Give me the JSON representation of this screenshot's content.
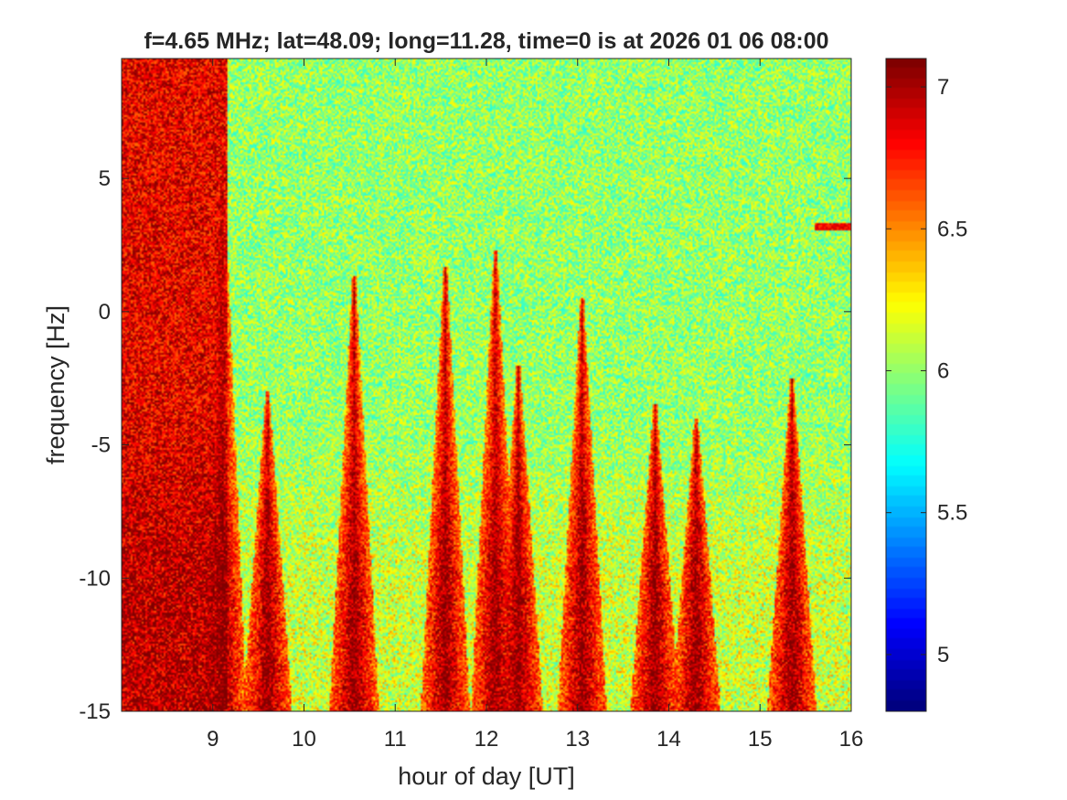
{
  "chart_data": {
    "type": "heatmap",
    "title": "f=4.65 MHz;  lat=48.09; long=11.28, time=0 is at 2026 01 06 08:00",
    "xlabel": "hour of day [UT]",
    "ylabel": "frequency [Hz]",
    "xlim": [
      8,
      16
    ],
    "ylim": [
      -15,
      9.5
    ],
    "xticks": [
      9,
      10,
      11,
      12,
      13,
      14,
      15,
      16
    ],
    "xtick_labels": [
      "9",
      "10",
      "11",
      "12",
      "13",
      "14",
      "15",
      "16"
    ],
    "yticks": [
      -15,
      -10,
      -5,
      0,
      5
    ],
    "ytick_labels": [
      "-15",
      "-10",
      "-5",
      "0",
      "5"
    ],
    "colorbar": {
      "colormap": "jet",
      "clim": [
        4.8,
        7.1
      ],
      "ticks": [
        5,
        5.5,
        6,
        6.5,
        7
      ],
      "tick_labels": [
        "5",
        "5.5",
        "6",
        "6.5",
        "7"
      ]
    },
    "background_level": 6.0,
    "features": [
      {
        "description": "strong broadband band",
        "x_range": [
          8.0,
          9.15
        ],
        "y_range": [
          -15,
          9.5
        ],
        "level": 7.0
      },
      {
        "description": "vertical spike",
        "x": 9.1,
        "y_top": 6.0
      },
      {
        "description": "vertical spike",
        "x": 9.6,
        "y_top": -3.0
      },
      {
        "description": "vertical spike",
        "x": 10.55,
        "y_top": 1.3
      },
      {
        "description": "vertical spike",
        "x": 11.55,
        "y_top": 1.7
      },
      {
        "description": "vertical spike",
        "x": 12.1,
        "y_top": 2.3
      },
      {
        "description": "vertical spike",
        "x": 12.35,
        "y_top": -2.0
      },
      {
        "description": "vertical spike",
        "x": 13.05,
        "y_top": 0.5
      },
      {
        "description": "vertical spike",
        "x": 13.85,
        "y_top": -3.5
      },
      {
        "description": "vertical spike",
        "x": 14.3,
        "y_top": -4.0
      },
      {
        "description": "vertical spike",
        "x": 15.35,
        "y_top": -2.5
      },
      {
        "description": "thin trace",
        "x_range": [
          15.6,
          16.0
        ],
        "y": 3.2
      }
    ]
  }
}
